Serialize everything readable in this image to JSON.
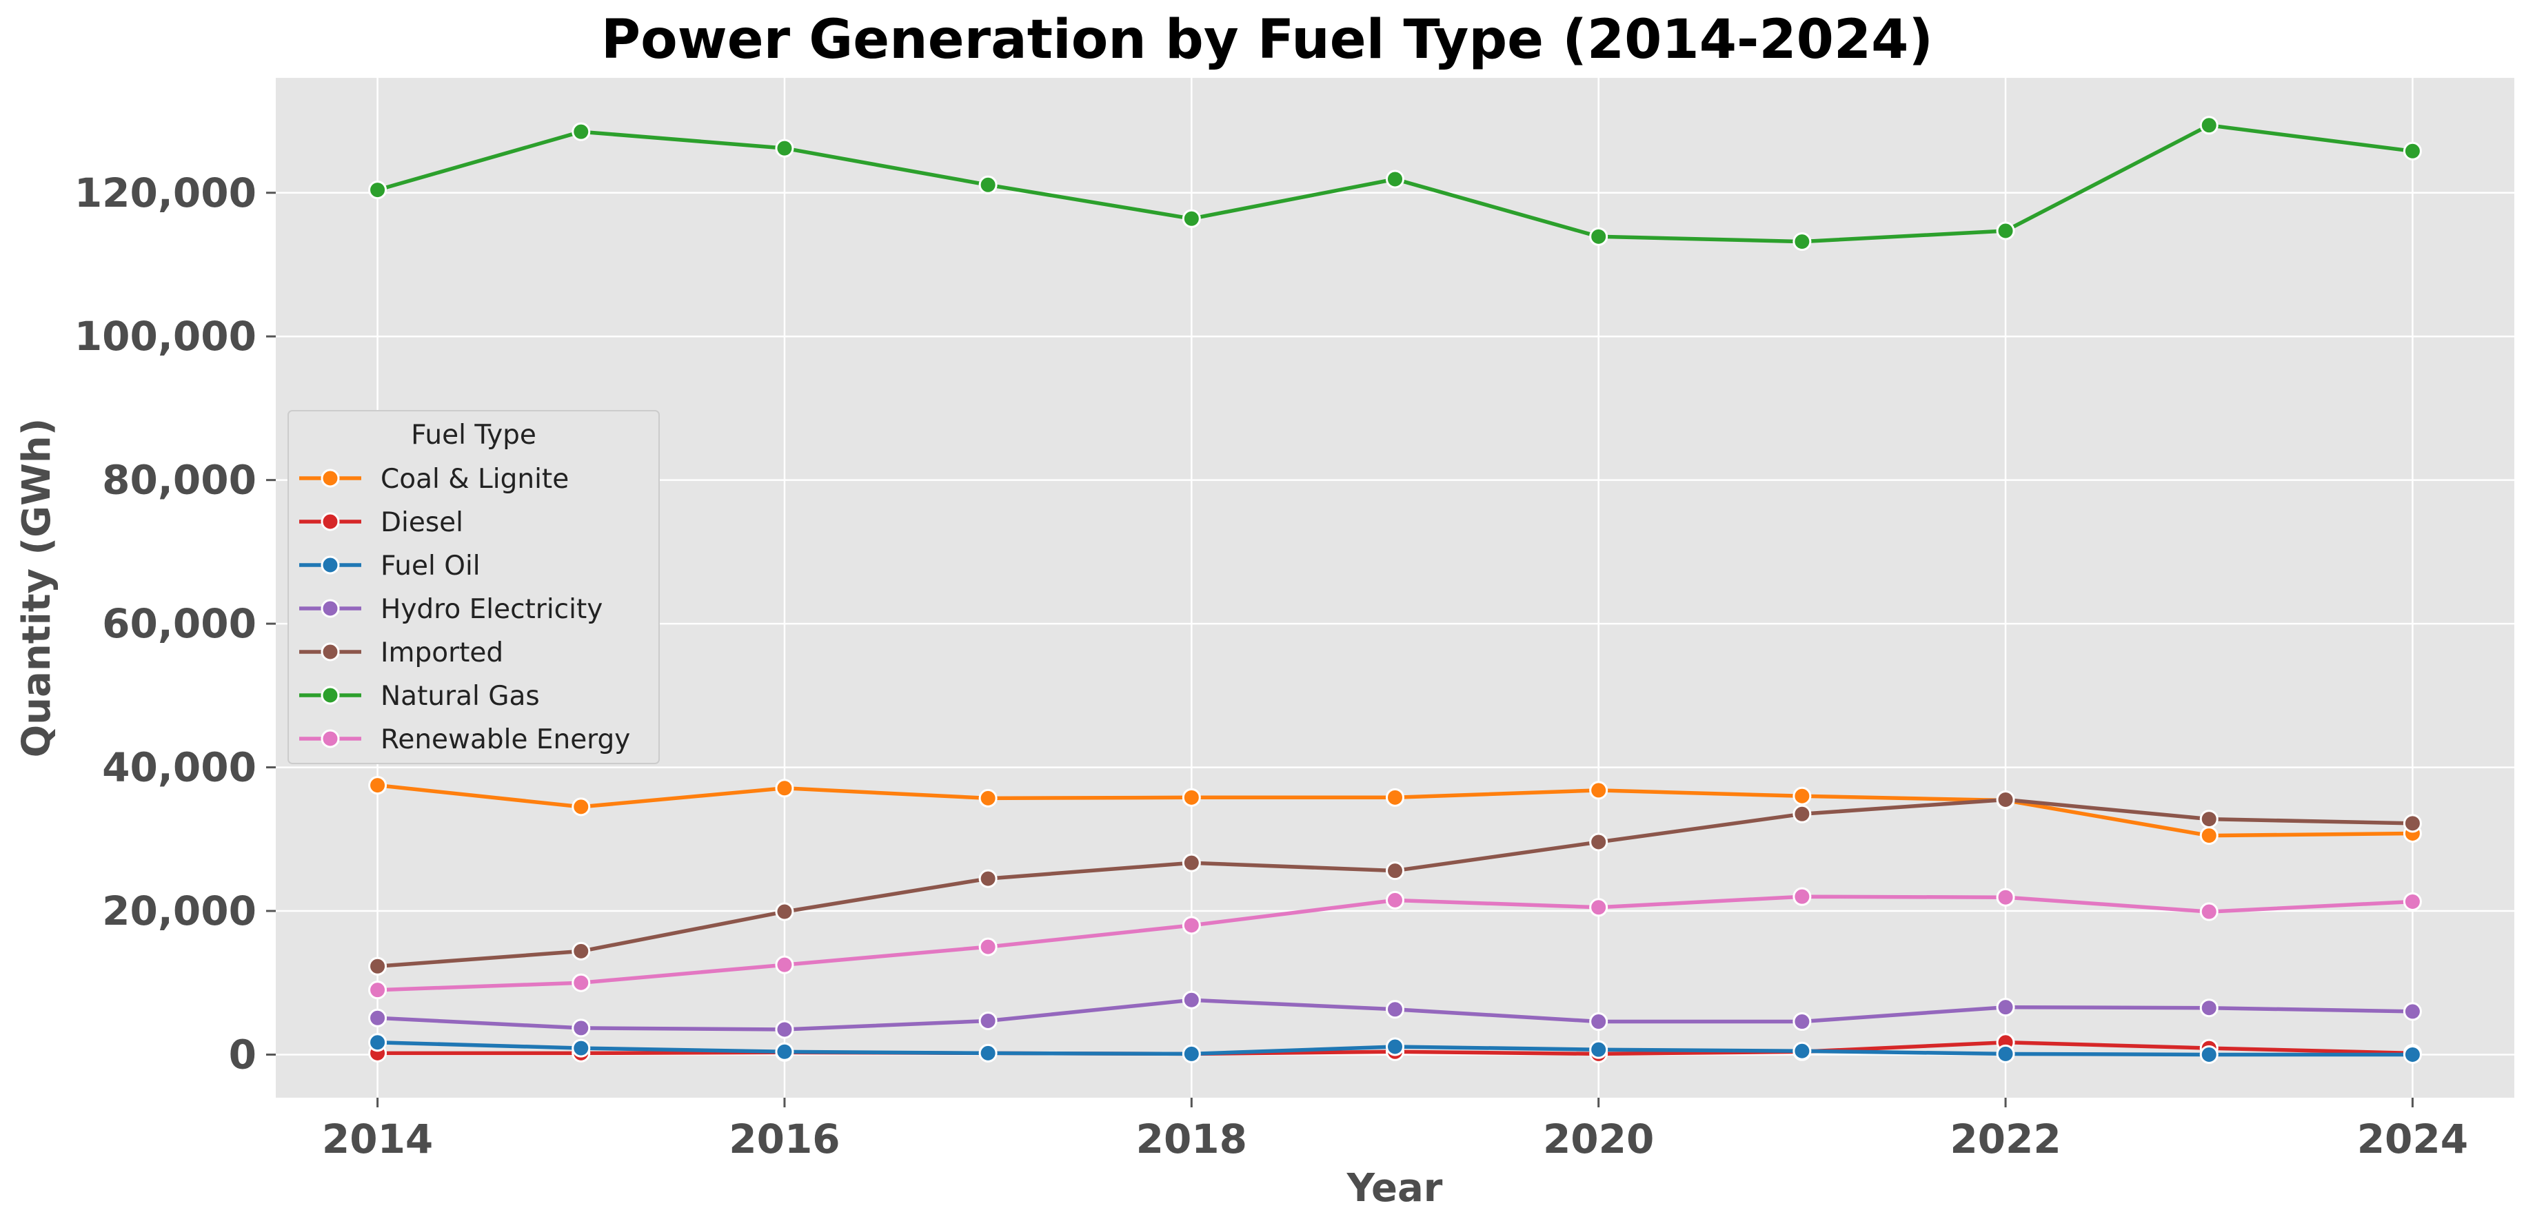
{
  "chart_data": {
    "type": "line",
    "title": "Power Generation by Fuel Type (2014-2024)",
    "xlabel": "Year",
    "ylabel": "Quantity (GWh)",
    "x": [
      2014,
      2015,
      2016,
      2017,
      2018,
      2019,
      2020,
      2021,
      2022,
      2023,
      2024
    ],
    "xticks": [
      2014,
      2016,
      2018,
      2020,
      2022,
      2024
    ],
    "xtick_labels": [
      "2014",
      "2016",
      "2018",
      "2020",
      "2022",
      "2024"
    ],
    "xlim": [
      2013.5,
      2024.5
    ],
    "ylim": [
      -6000,
      136000
    ],
    "yticks": [
      0,
      20000,
      40000,
      60000,
      80000,
      100000,
      120000
    ],
    "ytick_labels": [
      "0",
      "20,000",
      "40,000",
      "60,000",
      "80,000",
      "100,000",
      "120,000"
    ],
    "grid": true,
    "background": "#e5e5e5",
    "legend": {
      "title": "Fuel Type",
      "placement": "center-left"
    },
    "series": [
      {
        "name": "Coal & Lignite",
        "color": "#ff7f0e",
        "values": [
          37500,
          34500,
          37100,
          35700,
          35800,
          35800,
          36800,
          36000,
          35400,
          30500,
          30800
        ]
      },
      {
        "name": "Diesel",
        "color": "#d62728",
        "values": [
          200,
          200,
          300,
          200,
          100,
          400,
          100,
          400,
          1700,
          900,
          200
        ]
      },
      {
        "name": "Fuel Oil",
        "color": "#1f77b4",
        "values": [
          1700,
          900,
          400,
          200,
          100,
          1100,
          700,
          500,
          100,
          0,
          0
        ]
      },
      {
        "name": "Hydro Electricity",
        "color": "#9467bd",
        "values": [
          5100,
          3700,
          3500,
          4700,
          7600,
          6300,
          4600,
          4600,
          6600,
          6500,
          6000
        ]
      },
      {
        "name": "Imported",
        "color": "#8c564b",
        "values": [
          12300,
          14400,
          19900,
          24500,
          26700,
          25600,
          29600,
          33500,
          35500,
          32800,
          32200
        ]
      },
      {
        "name": "Natural Gas",
        "color": "#2ca02c",
        "values": [
          120400,
          128500,
          126200,
          121100,
          116400,
          121900,
          113900,
          113200,
          114700,
          129400,
          125800
        ]
      },
      {
        "name": "Renewable Energy",
        "color": "#e377c2",
        "values": [
          9000,
          10000,
          12500,
          15000,
          18000,
          21500,
          20500,
          22000,
          21900,
          19900,
          21300
        ]
      }
    ]
  }
}
